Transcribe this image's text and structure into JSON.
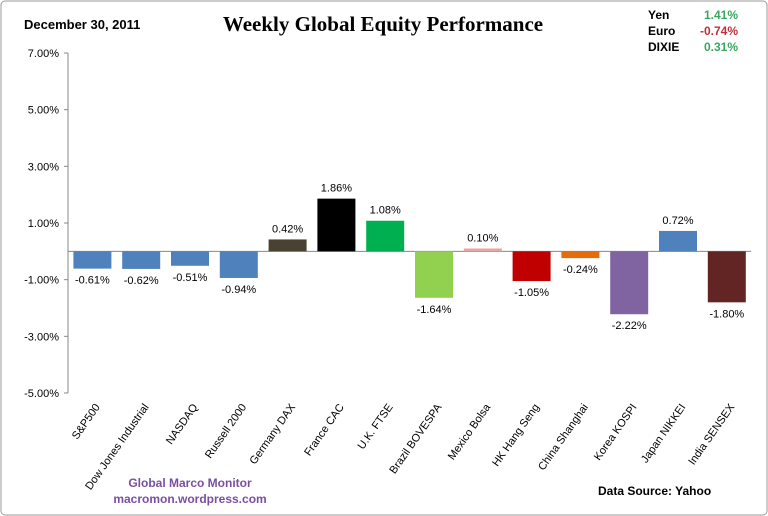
{
  "date": "December 30, 2011",
  "currencies": [
    {
      "name": "Yen",
      "value": "1.41%",
      "color": "#3aa860"
    },
    {
      "name": "Euro",
      "value": "-0.74%",
      "color": "#c0303a"
    },
    {
      "name": "DIXIE",
      "value": "0.31%",
      "color": "#3aa860"
    }
  ],
  "credit": {
    "line1": "Global  Marco  Monitor",
    "line2": "macromon.wordpress.com",
    "color": "#7a4fa0"
  },
  "source": "Data Source:   Yahoo",
  "chart_data": {
    "type": "bar",
    "title": "Weekly Global Equity Performance",
    "xlabel": "",
    "ylabel": "",
    "ylim": [
      -5,
      7
    ],
    "yticks": [
      7,
      5,
      3,
      1,
      -1,
      -3,
      -5
    ],
    "ytick_labels": [
      "7.00%",
      "5.00%",
      "3.00%",
      "1.00%",
      "-1.00%",
      "-3.00%",
      "-5.00%"
    ],
    "grid": false,
    "categories": [
      "S&P500",
      "Dow Jones Industrial",
      "NASDAQ",
      "Russell 2000",
      "Germany DAX",
      "France CAC",
      "U.K. FTSE",
      "Brazil BOVESPA",
      "Mexico Bolsa",
      "HK  Hang Seng",
      "China Shanghai",
      "Korea KOSPI",
      "Japan NIKKEI",
      "India SENSEX"
    ],
    "values": [
      -0.61,
      -0.62,
      -0.51,
      -0.94,
      0.42,
      1.86,
      1.08,
      -1.64,
      0.1,
      -1.05,
      -0.24,
      -2.22,
      0.72,
      -1.8
    ],
    "data_labels": [
      "-0.61%",
      "-0.62%",
      "-0.51%",
      "-0.94%",
      "0.42%",
      "1.86%",
      "1.08%",
      "-1.64%",
      "0.10%",
      "-1.05%",
      "-0.24%",
      "-2.22%",
      "0.72%",
      "-1.80%"
    ],
    "colors": [
      "#4f81bd",
      "#4f81bd",
      "#4f81bd",
      "#4f81bd",
      "#4a4230",
      "#000000",
      "#00b050",
      "#92d050",
      "#e6a5a0",
      "#c00000",
      "#e46c0a",
      "#8064a2",
      "#4f81bd",
      "#632523"
    ]
  }
}
